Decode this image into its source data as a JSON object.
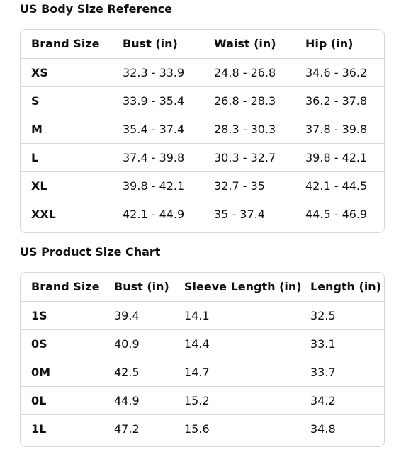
{
  "body_chart": {
    "title": "US Body Size Reference",
    "headers": [
      "Brand Size",
      "Bust (in)",
      "Waist (in)",
      "Hip (in)"
    ],
    "rows": [
      [
        "XS",
        "32.3 - 33.9",
        "24.8 - 26.8",
        "34.6 - 36.2"
      ],
      [
        "S",
        "33.9 - 35.4",
        "26.8 - 28.3",
        "36.2 - 37.8"
      ],
      [
        "M",
        "35.4 - 37.4",
        "28.3 - 30.3",
        "37.8 - 39.8"
      ],
      [
        "L",
        "37.4 - 39.8",
        "30.3 - 32.7",
        "39.8 - 42.1"
      ],
      [
        "XL",
        "39.8 - 42.1",
        "32.7 - 35",
        "42.1 - 44.5"
      ],
      [
        "XXL",
        "42.1 - 44.9",
        "35 - 37.4",
        "44.5 - 46.9"
      ]
    ]
  },
  "product_chart": {
    "title": "US Product Size Chart",
    "headers": [
      "Brand Size",
      "Bust (in)",
      "Sleeve Length (in)",
      "Length (in)"
    ],
    "rows": [
      [
        "1S",
        "39.4",
        "14.1",
        "32.5"
      ],
      [
        "0S",
        "40.9",
        "14.4",
        "33.1"
      ],
      [
        "0M",
        "42.5",
        "14.7",
        "33.7"
      ],
      [
        "0L",
        "44.9",
        "15.2",
        "34.2"
      ],
      [
        "1L",
        "47.2",
        "15.6",
        "34.8"
      ]
    ]
  }
}
